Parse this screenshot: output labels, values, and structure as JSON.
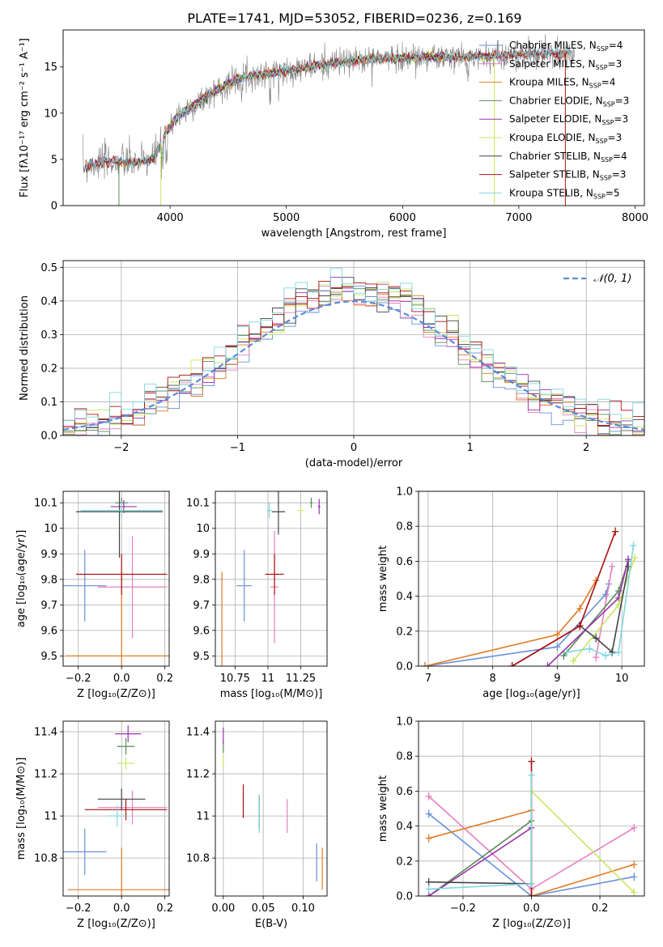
{
  "figure_title": "PLATE=1741, MJD=53052, FIBERID=0236, z=0.169",
  "colors": {
    "Chabrier MILES": "#6a8fd8",
    "Salpeter MILES": "#e77fc0",
    "Kroupa MILES": "#e07a24",
    "Chabrier ELODIE": "#5a8a5a",
    "Salpeter ELODIE": "#9933aa",
    "Kroupa ELODIE": "#c8e660",
    "Chabrier STELIB": "#444444",
    "Salpeter STELIB": "#aa1111",
    "Kroupa STELIB": "#7fd7e0",
    "normal": "#5b8ad8"
  },
  "chart_data": [
    {
      "id": "spectrum",
      "type": "line",
      "xlabel": "wavelength [Angstrom, rest frame]",
      "ylabel": "Flux [fλ10⁻¹⁷ erg cm⁻² s⁻¹ A⁻¹]",
      "xlim": [
        3080,
        8080
      ],
      "ylim": [
        0,
        19
      ],
      "xticks": [
        4000,
        5000,
        6000,
        7000,
        8000
      ],
      "yticks": [
        0,
        5,
        10,
        15
      ],
      "grid": false,
      "legend_position": "upper right",
      "legend": [
        {
          "label": "Chabrier MILES, N",
          "sub": "SSP",
          "suffix": "=4"
        },
        {
          "label": "Salpeter MILES, N",
          "sub": "SSP",
          "suffix": "=3"
        },
        {
          "label": "Kroupa MILES, N",
          "sub": "SSP",
          "suffix": "=4"
        },
        {
          "label": "Chabrier ELODIE, N",
          "sub": "SSP",
          "suffix": "=3"
        },
        {
          "label": "Salpeter ELODIE, N",
          "sub": "SSP",
          "suffix": "=3"
        },
        {
          "label": "Kroupa ELODIE, N",
          "sub": "SSP",
          "suffix": "=3"
        },
        {
          "label": "Chabrier STELIB, N",
          "sub": "SSP",
          "suffix": "=4"
        },
        {
          "label": "Salpeter STELIB, N",
          "sub": "SSP",
          "suffix": "=3"
        },
        {
          "label": "Kroupa STELIB, N",
          "sub": "SSP",
          "suffix": "=5"
        }
      ],
      "continuum": {
        "x": [
          3250,
          3400,
          3550,
          3700,
          3850,
          3950,
          4050,
          4200,
          4400,
          4600,
          4800,
          5000,
          5200,
          5400,
          5600,
          5800,
          6000,
          6200,
          6400,
          6600,
          6800,
          7000,
          7200,
          7400
        ],
        "y": [
          4.2,
          4.7,
          4.8,
          4.6,
          5.0,
          7.5,
          9.5,
          10.8,
          12.5,
          13.8,
          14.2,
          14.6,
          15.0,
          15.4,
          15.7,
          15.9,
          16.0,
          16.1,
          16.0,
          16.1,
          16.2,
          16.3,
          16.4,
          16.5
        ]
      }
    },
    {
      "id": "residuals",
      "type": "line",
      "xlabel": "(data-model)/error",
      "ylabel": "Normed distribution",
      "xlim": [
        -2.5,
        2.5
      ],
      "ylim": [
        0,
        0.52
      ],
      "xticks": [
        -2,
        -1,
        0,
        1,
        2
      ],
      "yticks": [
        0.0,
        0.1,
        0.2,
        0.3,
        0.4,
        0.5
      ],
      "grid": true,
      "legend_position": "upper right",
      "legend": [
        {
          "label": "𝒩(0, 1)"
        }
      ],
      "series": [
        {
          "name": "𝒩(0, 1)",
          "function": "standard normal pdf"
        }
      ]
    },
    {
      "id": "age-vs-Z",
      "type": "scatter",
      "xlabel": "Z [log₁₀(Z/Z⊙)]",
      "ylabel": "age  [log₁₀(age/yr)]",
      "xlim": [
        -0.27,
        0.22
      ],
      "ylim": [
        9.46,
        10.145
      ],
      "xticks": [
        -0.2,
        0.0,
        0.2
      ],
      "xticklabels": [
        "−0.2",
        "0.0",
        "0.2"
      ],
      "yticks": [
        9.5,
        9.6,
        9.7,
        9.8,
        9.9,
        10.0,
        10.1
      ],
      "grid": true,
      "points": [
        {
          "model": "Chabrier MILES",
          "x": -0.17,
          "y": 9.775,
          "xerr": 0.1,
          "yerr": 0.14
        },
        {
          "model": "Salpeter MILES",
          "x": 0.05,
          "y": 9.77,
          "xerr": 0.16,
          "yerr": 0.2
        },
        {
          "model": "Kroupa MILES",
          "x": 0.0,
          "y": 9.5,
          "xerr": 0.26,
          "yerr": 0.33
        },
        {
          "model": "Chabrier ELODIE",
          "x": 0.0,
          "y": 10.1,
          "xerr": 0.03,
          "yerr": 0.02
        },
        {
          "model": "Salpeter ELODIE",
          "x": 0.01,
          "y": 10.085,
          "xerr": 0.06,
          "yerr": 0.025
        },
        {
          "model": "Kroupa ELODIE",
          "x": 0.0,
          "y": 10.07,
          "xerr": 0.04,
          "yerr": 0.02
        },
        {
          "model": "Chabrier STELIB",
          "x": -0.01,
          "y": 10.065,
          "xerr": 0.2,
          "yerr": 0.18
        },
        {
          "model": "Salpeter STELIB",
          "x": 0.0,
          "y": 9.82,
          "xerr": 0.21,
          "yerr": 0.08
        },
        {
          "model": "Kroupa STELIB",
          "x": 0.0,
          "y": 10.07,
          "xerr": 0.19,
          "yerr": 0.03
        }
      ]
    },
    {
      "id": "age-vs-mass",
      "type": "scatter",
      "xlabel": "mass [log₁₀(M/M⊙)]",
      "ylabel": "",
      "xlim": [
        10.6,
        11.45
      ],
      "ylim": [
        9.46,
        10.145
      ],
      "xticks": [
        10.75,
        11.0,
        11.25
      ],
      "yticks": [
        9.5,
        9.6,
        9.7,
        9.8,
        9.9,
        10.0,
        10.1
      ],
      "grid": true,
      "points": [
        {
          "model": "Chabrier MILES",
          "x": 10.82,
          "y": 9.775,
          "xerr": 0.06,
          "yerr": 0.14
        },
        {
          "model": "Salpeter MILES",
          "x": 11.05,
          "y": 9.77,
          "xerr": 0.03,
          "yerr": 0.22
        },
        {
          "model": "Kroupa MILES",
          "x": 10.65,
          "y": 9.5,
          "xerr": 0.0,
          "yerr": 0.33
        },
        {
          "model": "Chabrier ELODIE",
          "x": 11.33,
          "y": 10.1,
          "xerr": 0.01,
          "yerr": 0.02
        },
        {
          "model": "Salpeter ELODIE",
          "x": 11.39,
          "y": 10.085,
          "xerr": 0.01,
          "yerr": 0.03
        },
        {
          "model": "Kroupa ELODIE",
          "x": 11.25,
          "y": 10.07,
          "xerr": 0.02,
          "yerr": 0.01
        },
        {
          "model": "Chabrier STELIB",
          "x": 11.08,
          "y": 10.065,
          "xerr": 0.05,
          "yerr": 0.09
        },
        {
          "model": "Salpeter STELIB",
          "x": 11.05,
          "y": 9.82,
          "xerr": 0.07,
          "yerr": 0.08
        },
        {
          "model": "Kroupa STELIB",
          "x": 11.01,
          "y": 10.07,
          "xerr": 0.02,
          "yerr": 0.03
        }
      ]
    },
    {
      "id": "weight-vs-age",
      "type": "line",
      "xlabel": "age  [log₁₀(age/yr)]",
      "ylabel": "mass weight",
      "xlim": [
        6.85,
        10.35
      ],
      "ylim": [
        0,
        1
      ],
      "xticks": [
        7,
        8,
        9,
        10
      ],
      "yticks": [
        0.0,
        0.2,
        0.4,
        0.6,
        0.8,
        1.0
      ],
      "grid": true,
      "series": [
        {
          "name": "Chabrier MILES",
          "x": [
            6.95,
            9.0,
            9.75,
            9.8
          ],
          "y": [
            0.0,
            0.11,
            0.41,
            0.47
          ]
        },
        {
          "name": "Salpeter MILES",
          "x": [
            9.6,
            9.85
          ],
          "y": [
            0.05,
            0.57
          ]
        },
        {
          "name": "Kroupa MILES",
          "x": [
            6.95,
            9.0,
            9.35,
            9.6
          ],
          "y": [
            0.0,
            0.18,
            0.33,
            0.49
          ]
        },
        {
          "name": "Chabrier ELODIE",
          "x": [
            9.1,
            9.95,
            10.1
          ],
          "y": [
            0.06,
            0.43,
            0.6
          ]
        },
        {
          "name": "Salpeter ELODIE",
          "x": [
            8.85,
            9.95,
            10.1
          ],
          "y": [
            0.0,
            0.39,
            0.61
          ]
        },
        {
          "name": "Kroupa ELODIE",
          "x": [
            9.25,
            9.95,
            10.2
          ],
          "y": [
            0.03,
            0.35,
            0.62
          ]
        },
        {
          "name": "Chabrier STELIB",
          "x": [
            8.3,
            9.35,
            9.6,
            9.85,
            10.1
          ],
          "y": [
            0.0,
            0.23,
            0.16,
            0.08,
            0.57
          ]
        },
        {
          "name": "Salpeter STELIB",
          "x": [
            8.3,
            9.35,
            9.9
          ],
          "y": [
            0.0,
            0.23,
            0.77
          ]
        },
        {
          "name": "Kroupa STELIB",
          "x": [
            9.15,
            9.5,
            9.75,
            9.95,
            10.18
          ],
          "y": [
            0.08,
            0.1,
            0.06,
            0.08,
            0.69
          ]
        }
      ]
    },
    {
      "id": "mass-vs-Z",
      "type": "scatter",
      "xlabel": "Z [log₁₀(Z/Z⊙)]",
      "ylabel": "mass [log₁₀(M/M⊙)]",
      "xlim": [
        -0.27,
        0.22
      ],
      "ylim": [
        10.62,
        11.45
      ],
      "xticks": [
        -0.2,
        0.0,
        0.2
      ],
      "xticklabels": [
        "−0.2",
        "0.0",
        "0.2"
      ],
      "yticks": [
        10.8,
        11.0,
        11.2,
        11.4
      ],
      "grid": true,
      "points": [
        {
          "model": "Chabrier MILES",
          "x": -0.17,
          "y": 10.83,
          "xerr": 0.1,
          "yerr": 0.11
        },
        {
          "model": "Salpeter MILES",
          "x": 0.05,
          "y": 11.04,
          "xerr": 0.16,
          "yerr": 0.08
        },
        {
          "model": "Kroupa MILES",
          "x": 0.0,
          "y": 10.65,
          "xerr": 0.25,
          "yerr": 0.2
        },
        {
          "model": "Chabrier ELODIE",
          "x": 0.02,
          "y": 11.33,
          "xerr": 0.04,
          "yerr": 0.04
        },
        {
          "model": "Salpeter ELODIE",
          "x": 0.03,
          "y": 11.39,
          "xerr": 0.06,
          "yerr": 0.04
        },
        {
          "model": "Kroupa ELODIE",
          "x": 0.02,
          "y": 11.25,
          "xerr": 0.04,
          "yerr": 0.03
        },
        {
          "model": "Chabrier STELIB",
          "x": 0.0,
          "y": 11.08,
          "xerr": 0.11,
          "yerr": 0.05
        },
        {
          "model": "Salpeter STELIB",
          "x": 0.02,
          "y": 11.03,
          "xerr": 0.19,
          "yerr": 0.05
        },
        {
          "model": "Kroupa STELIB",
          "x": -0.02,
          "y": 11.0,
          "xerr": 0.04,
          "yerr": 0.05
        }
      ]
    },
    {
      "id": "mass-vs-ebv",
      "type": "scatter",
      "xlabel": "E(B-V)",
      "ylabel": "",
      "xlim": [
        -0.01,
        0.13
      ],
      "ylim": [
        10.62,
        11.45
      ],
      "xticks": [
        0.0,
        0.05,
        0.1
      ],
      "xticklabels": [
        "0.00",
        "0.05",
        "0.10"
      ],
      "yticks": [
        10.8,
        11.0,
        11.2,
        11.4
      ],
      "grid": true,
      "points": [
        {
          "model": "Chabrier MILES",
          "x": 0.117,
          "y": 10.78,
          "xerr": 0.0,
          "yerr": 0.09
        },
        {
          "model": "Salpeter MILES",
          "x": 0.08,
          "y": 11.0,
          "xerr": 0.0,
          "yerr": 0.08
        },
        {
          "model": "Kroupa MILES",
          "x": 0.124,
          "y": 10.75,
          "xerr": 0.0,
          "yerr": 0.1
        },
        {
          "model": "Chabrier ELODIE",
          "x": 0.0,
          "y": 11.33,
          "xerr": 0.0,
          "yerr": 0.03
        },
        {
          "model": "Salpeter ELODIE",
          "x": 0.0,
          "y": 11.38,
          "xerr": 0.0,
          "yerr": 0.04
        },
        {
          "model": "Kroupa ELODIE",
          "x": 0.0,
          "y": 11.26,
          "xerr": 0.0,
          "yerr": 0.03
        },
        {
          "model": "Chabrier STELIB",
          "x": 0.045,
          "y": 11.02,
          "xerr": 0.0,
          "yerr": 0.08
        },
        {
          "model": "Salpeter STELIB",
          "x": 0.025,
          "y": 11.07,
          "xerr": 0.0,
          "yerr": 0.08
        },
        {
          "model": "Kroupa STELIB",
          "x": 0.045,
          "y": 11.01,
          "xerr": 0.0,
          "yerr": 0.09
        }
      ]
    },
    {
      "id": "weight-vs-Z",
      "type": "line",
      "xlabel": "Z [log₁₀(Z/Z⊙)]",
      "ylabel": "mass weight",
      "xlim": [
        -0.33,
        0.33
      ],
      "ylim": [
        0,
        1
      ],
      "xticks": [
        -0.2,
        0.0,
        0.2
      ],
      "xticklabels": [
        "−0.2",
        "0.0",
        "0.2"
      ],
      "yticks": [
        0.0,
        0.2,
        0.4,
        0.6,
        0.8,
        1.0
      ],
      "grid": true,
      "series": [
        {
          "name": "Chabrier MILES",
          "x": [
            -0.3,
            0.0,
            0.3
          ],
          "y": [
            0.47,
            0.0,
            0.11
          ]
        },
        {
          "name": "Salpeter MILES",
          "x": [
            -0.3,
            0.0,
            0.3
          ],
          "y": [
            0.57,
            0.04,
            0.39
          ]
        },
        {
          "name": "Kroupa MILES",
          "x": [
            -0.3,
            0.0,
            0.0,
            0.3
          ],
          "y": [
            0.33,
            0.49,
            0.0,
            0.18
          ]
        },
        {
          "name": "Chabrier ELODIE",
          "x": [
            -0.3,
            0.0
          ],
          "y": [
            0.0,
            0.43
          ]
        },
        {
          "name": "Salpeter ELODIE",
          "x": [
            -0.3,
            0.0
          ],
          "y": [
            0.0,
            0.39
          ]
        },
        {
          "name": "Kroupa ELODIE",
          "x": [
            0.0,
            0.3
          ],
          "y": [
            0.6,
            0.02
          ]
        },
        {
          "name": "Chabrier STELIB",
          "x": [
            -0.3,
            0.0
          ],
          "y": [
            0.08,
            0.07
          ]
        },
        {
          "name": "Salpeter STELIB",
          "x": [
            0.0,
            0.0
          ],
          "y": [
            0.0,
            0.77
          ]
        },
        {
          "name": "Kroupa STELIB",
          "x": [
            -0.3,
            0.0,
            0.0
          ],
          "y": [
            0.04,
            0.07,
            0.69
          ]
        }
      ]
    }
  ]
}
